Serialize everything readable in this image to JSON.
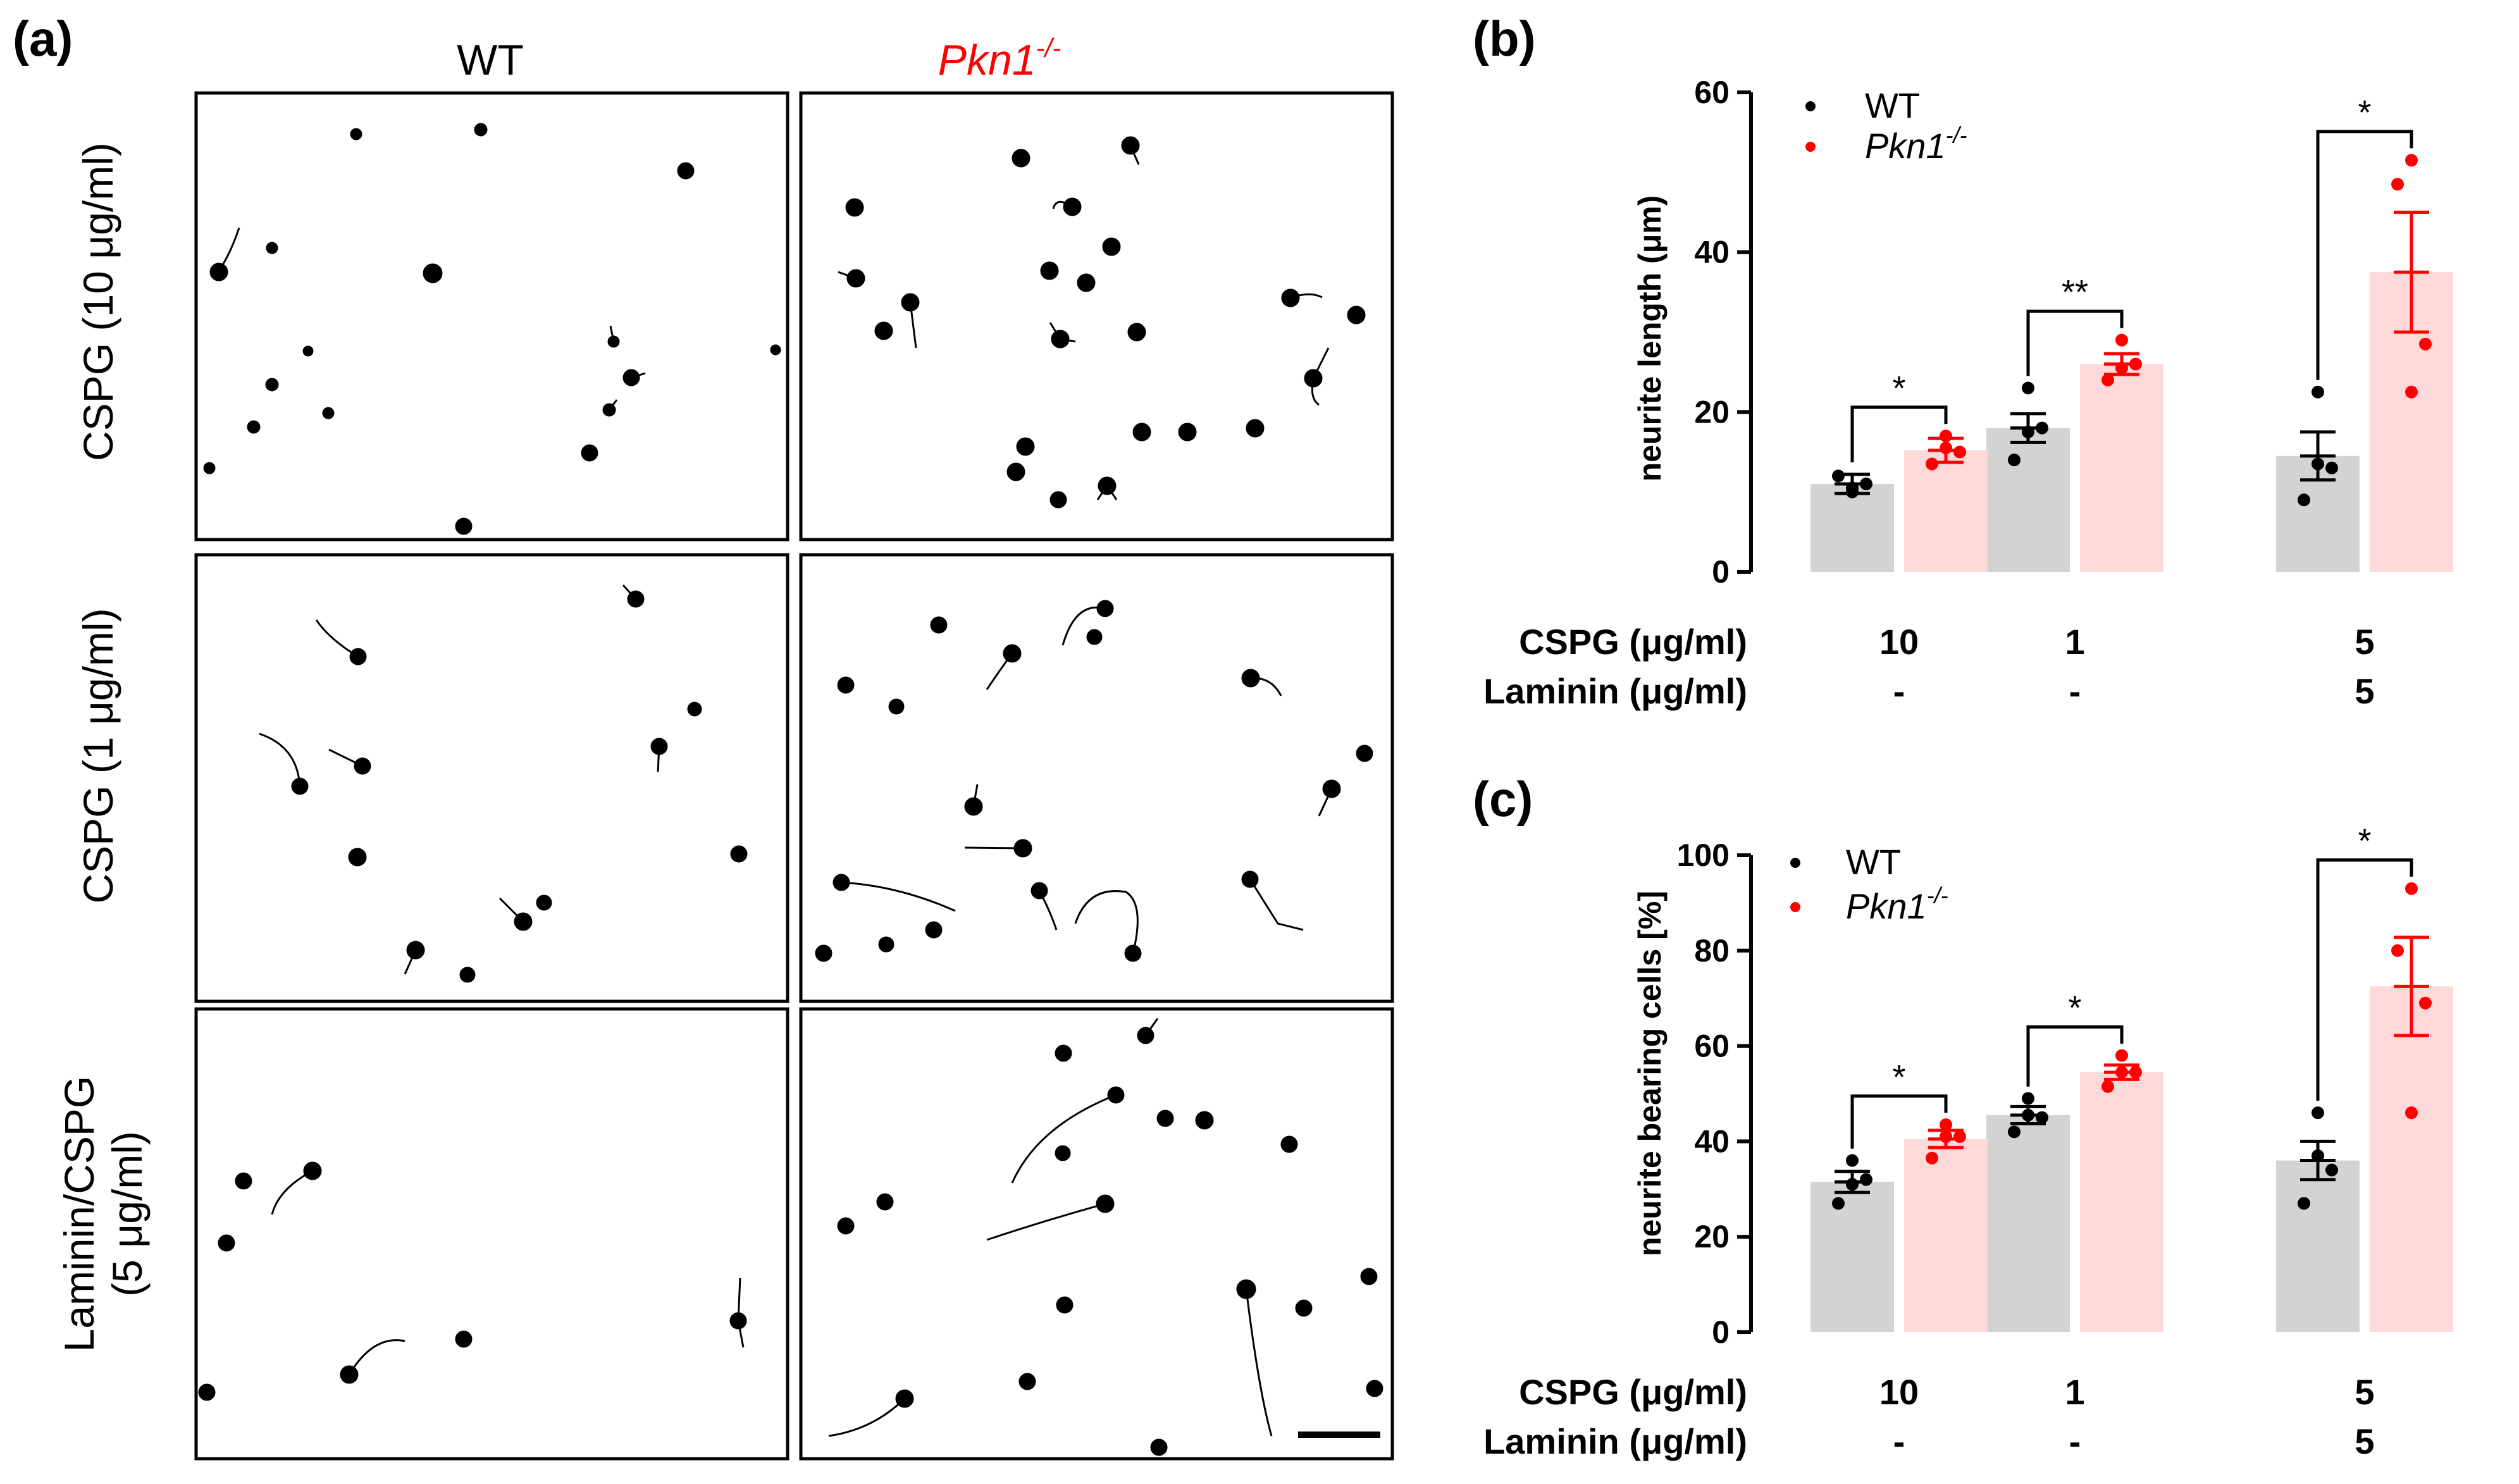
{
  "panel_a": {
    "label": "(a)",
    "columns": [
      "WT",
      "Pkn1"
    ],
    "column_superscript": "-/-",
    "rows": [
      "CSPG (10 μg/ml)",
      "CSPG (1 μg/ml)",
      "Laminin/CSPG",
      "(5 μg/ml)"
    ]
  },
  "colors": {
    "wt_dot": "#000000",
    "ko_dot": "#ff0000",
    "wt_bar": "#d3d3d3",
    "ko_bar": "#fdd9d9",
    "ko_label": "#ff0000"
  },
  "legend": {
    "wt": "WT",
    "ko": "Pkn1",
    "ko_superscript": "-/-"
  },
  "condition_rows": {
    "cspg_label": "CSPG (μg/ml)",
    "laminin_label": "Laminin (μg/ml)",
    "cspg": [
      "10",
      "1",
      "5"
    ],
    "laminin": [
      "-",
      "-",
      "5"
    ]
  },
  "chart_data": [
    {
      "panel": "(b)",
      "type": "bar",
      "ylabel": "neurite length (μm)",
      "ylim": [
        0,
        60
      ],
      "yticks": [
        "0",
        "20",
        "40",
        "60"
      ],
      "categories": [
        "10 / -",
        "1 / -",
        "5 / 5"
      ],
      "series": [
        {
          "name": "WT",
          "means": [
            11,
            18,
            14.5
          ],
          "sem": [
            1.2,
            1.8,
            3.0
          ],
          "points": [
            [
              10,
              12,
              11,
              10.5
            ],
            [
              23,
              14,
              18,
              17.5
            ],
            [
              22.5,
              9,
              13,
              13.5
            ]
          ]
        },
        {
          "name": "Pkn1-/-",
          "means": [
            15.2,
            26,
            37.5
          ],
          "sem": [
            1.5,
            1.3,
            7.5
          ],
          "points": [
            [
              17,
              13.5,
              15,
              15.5
            ],
            [
              29,
              24,
              26,
              25.5
            ],
            [
              51.5,
              48.5,
              28.5,
              22.5
            ]
          ]
        }
      ],
      "significance": [
        "*",
        "**",
        "*"
      ]
    },
    {
      "panel": "(c)",
      "type": "bar",
      "ylabel": "neurite bearing cells [%]",
      "ylim": [
        0,
        100
      ],
      "yticks": [
        "0",
        "20",
        "40",
        "60",
        "80",
        "100"
      ],
      "categories": [
        "10 / -",
        "1 / -",
        "5 / 5"
      ],
      "series": [
        {
          "name": "WT",
          "means": [
            31.5,
            45.5,
            36
          ],
          "sem": [
            2.2,
            1.8,
            4.0
          ],
          "points": [
            [
              36,
              27,
              32,
              31
            ],
            [
              49,
              42,
              45,
              45.5
            ],
            [
              46,
              27,
              34,
              37
            ]
          ]
        },
        {
          "name": "Pkn1-/-",
          "means": [
            40.5,
            54.5,
            72.5
          ],
          "sem": [
            1.8,
            1.5,
            10.3
          ],
          "points": [
            [
              43.5,
              36.5,
              41,
              41
            ],
            [
              58,
              51.5,
              54.5,
              54.5
            ],
            [
              93,
              80,
              69,
              46
            ]
          ]
        }
      ],
      "significance": [
        "*",
        "*",
        "*"
      ]
    }
  ]
}
